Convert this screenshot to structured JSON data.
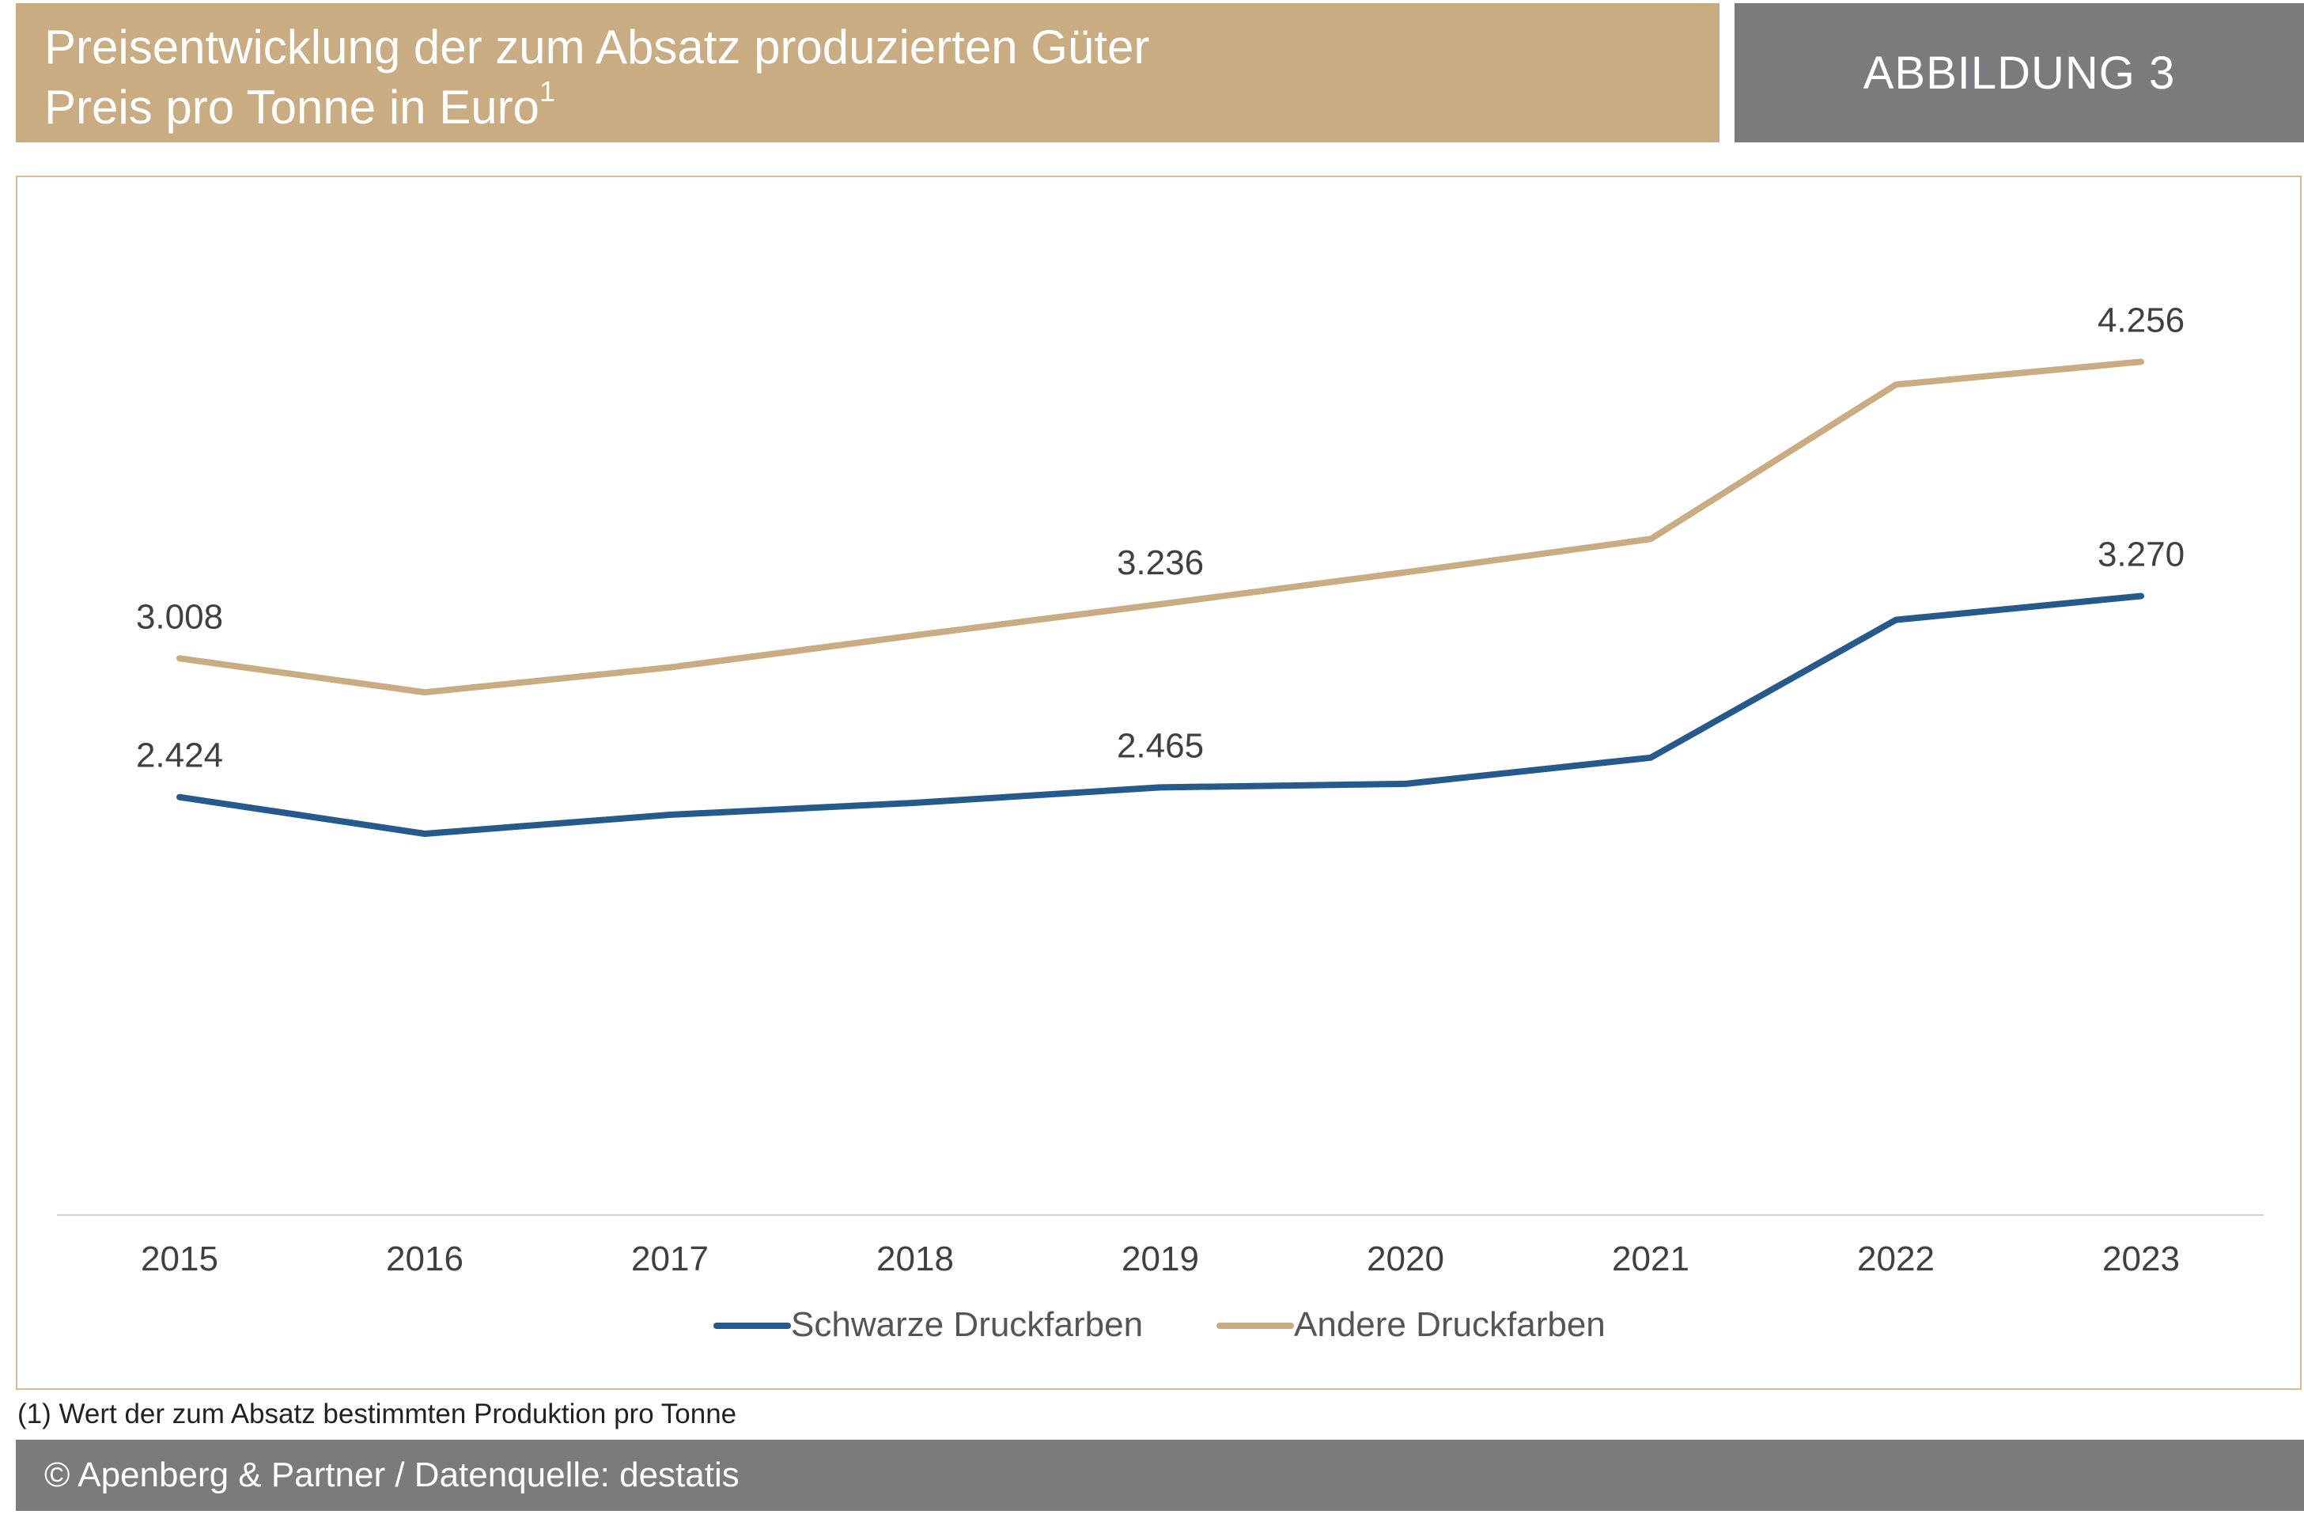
{
  "header": {
    "title": "Preisentwicklung der zum Absatz produzierten Güter",
    "subtitle": "Preis pro Tonne in Euro",
    "subtitle_sup": "1",
    "badge": "ABBILDUNG 3"
  },
  "footnote": "(1) Wert der zum Absatz bestimmten Produktion pro Tonne",
  "footer": "© Apenberg & Partner / Datenquelle: destatis",
  "colors": {
    "brand_gold": "#c9ac82",
    "brand_grey": "#7b7b7d",
    "series_blue": "#275a8c",
    "series_gold": "#c9ac82"
  },
  "chart_data": {
    "type": "line",
    "title": "Preisentwicklung der zum Absatz produzierten Güter",
    "subtitle": "Preis pro Tonne in Euro",
    "x": [
      "2015",
      "2016",
      "2017",
      "2018",
      "2019",
      "2020",
      "2021",
      "2022",
      "2023"
    ],
    "series": [
      {
        "name": "Schwarze Druckfarben",
        "color": "#275a8c",
        "values": [
          2424,
          2270,
          2350,
          2400,
          2465,
          2480,
          2590,
          3170,
          3270
        ],
        "labels": {
          "0": "2.424",
          "4": "2.465",
          "8": "3.270"
        }
      },
      {
        "name": "Andere Druckfarben",
        "color": "#c9ac82",
        "values": [
          3008,
          2865,
          2970,
          3105,
          3236,
          3370,
          3510,
          4160,
          4256
        ],
        "labels": {
          "0": "3.008",
          "4": "3.236",
          "8": "4.256"
        }
      }
    ],
    "ylim": [
      0,
      4500
    ],
    "y_axis_shown": false,
    "grid": false,
    "legend": "bottom-center"
  }
}
